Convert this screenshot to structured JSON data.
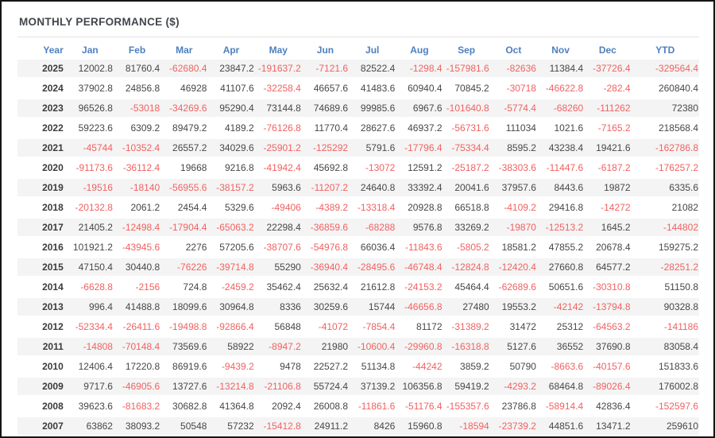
{
  "title": "MONTHLY PERFORMANCE ($)",
  "colors": {
    "header_blue": "#4d80bf",
    "negative_red": "#f26161",
    "positive_text": "#474747",
    "year_text": "#3b3b3b",
    "row_stripe": "#f4f4f4",
    "title_text": "#42464c",
    "divider": "#e3e3e3",
    "outer_border": "#141414"
  },
  "chart_data": {
    "type": "table",
    "title": "MONTHLY PERFORMANCE ($)",
    "columns": [
      "Year",
      "Jan",
      "Feb",
      "Mar",
      "Apr",
      "May",
      "Jun",
      "Jul",
      "Aug",
      "Sep",
      "Oct",
      "Nov",
      "Dec",
      "YTD"
    ],
    "rows": [
      {
        "year": "2025",
        "values": [
          12002.8,
          81760.4,
          -62680.4,
          23847.2,
          -191637.2,
          -7121.6,
          82522.4,
          -1298.4,
          -157981.6,
          -82636,
          11384.4,
          -37726.4,
          -329564.4
        ]
      },
      {
        "year": "2024",
        "values": [
          37902.8,
          24856.8,
          46928,
          41107.6,
          -32258.4,
          46657.6,
          41483.6,
          60940.4,
          70845.2,
          -30718,
          -46622.8,
          -282.4,
          260840.4
        ]
      },
      {
        "year": "2023",
        "values": [
          96526.8,
          -53018,
          -34269.6,
          95290.4,
          73144.8,
          74689.6,
          99985.6,
          6967.6,
          -101640.8,
          -5774.4,
          -68260,
          -111262,
          72380
        ]
      },
      {
        "year": "2022",
        "values": [
          59223.6,
          6309.2,
          89479.2,
          4189.2,
          -76126.8,
          11770.4,
          28627.6,
          46937.2,
          -56731.6,
          111034,
          1021.6,
          -7165.2,
          218568.4
        ]
      },
      {
        "year": "2021",
        "values": [
          -45744,
          -10352.4,
          26557.2,
          34029.6,
          -25901.2,
          -125292,
          5791.6,
          -17796.4,
          -75334.4,
          8595.2,
          43238.4,
          19421.6,
          -162786.8
        ]
      },
      {
        "year": "2020",
        "values": [
          -91173.6,
          -36112.4,
          19668,
          9216.8,
          -41942.4,
          45692.8,
          -13072,
          12591.2,
          -25187.2,
          -38303.6,
          -11447.6,
          -6187.2,
          -176257.2
        ]
      },
      {
        "year": "2019",
        "values": [
          -19516,
          -18140,
          -56955.6,
          -38157.2,
          5963.6,
          -11207.2,
          24640.8,
          33392.4,
          20041.6,
          37957.6,
          8443.6,
          19872,
          6335.6
        ]
      },
      {
        "year": "2018",
        "values": [
          -20132.8,
          2061.2,
          2454.4,
          5329.6,
          -49406,
          -4389.2,
          -13318.4,
          20928.8,
          66518.8,
          -4109.2,
          29416.8,
          -14272,
          21082
        ]
      },
      {
        "year": "2017",
        "values": [
          21405.2,
          -12498.4,
          -17904.4,
          -65063.2,
          22298.4,
          -36859.6,
          -68288,
          9576.8,
          33269.2,
          -19870,
          -12513.2,
          1645.2,
          -144802
        ]
      },
      {
        "year": "2016",
        "values": [
          101921.2,
          -43945.6,
          2276,
          57205.6,
          -38707.6,
          -54976.8,
          66036.4,
          -11843.6,
          -5805.2,
          18581.2,
          47855.2,
          20678.4,
          159275.2
        ]
      },
      {
        "year": "2015",
        "values": [
          47150.4,
          30440.8,
          -76226,
          -39714.8,
          55290,
          -36940.4,
          -28495.6,
          -46748.4,
          -12824.8,
          -12420.4,
          27660.8,
          64577.2,
          -28251.2
        ]
      },
      {
        "year": "2014",
        "values": [
          -6628.8,
          -2156,
          724.8,
          -2459.2,
          35462.4,
          25632.4,
          21612.8,
          -24153.2,
          45464.4,
          -62689.6,
          50651.6,
          -30310.8,
          51150.8
        ]
      },
      {
        "year": "2013",
        "values": [
          996.4,
          41488.8,
          18099.6,
          30964.8,
          8336,
          30259.6,
          15744,
          -46656.8,
          27480,
          19553.2,
          -42142,
          -13794.8,
          90328.8
        ]
      },
      {
        "year": "2012",
        "values": [
          -52334.4,
          -26411.6,
          -19498.8,
          -92866.4,
          56848,
          -41072,
          -7854.4,
          81172,
          -31389.2,
          31472,
          25312,
          -64563.2,
          -141186
        ]
      },
      {
        "year": "2011",
        "values": [
          -14808,
          -70148.4,
          73569.6,
          58922,
          -8947.2,
          21980,
          -10600.4,
          -29960.8,
          -16318.8,
          5127.6,
          36552,
          37690.8,
          83058.4
        ]
      },
      {
        "year": "2010",
        "values": [
          12406.4,
          17220.8,
          86919.6,
          -9439.2,
          9478,
          22527.2,
          51134.8,
          -44242,
          3859.2,
          50790,
          -8663.6,
          -40157.6,
          151833.6
        ]
      },
      {
        "year": "2009",
        "values": [
          9717.6,
          -46905.6,
          13727.6,
          -13214.8,
          -21106.8,
          55724.4,
          37139.2,
          106356.8,
          59419.2,
          -4293.2,
          68464.8,
          -89026.4,
          176002.8
        ]
      },
      {
        "year": "2008",
        "values": [
          39623.6,
          -81683.2,
          30682.8,
          41364.8,
          2092.4,
          26008.8,
          -11861.6,
          -51176.4,
          -155357.6,
          23786.8,
          -58914.4,
          42836.4,
          -152597.6
        ]
      },
      {
        "year": "2007",
        "values": [
          63862,
          38093.2,
          50548,
          57232,
          -15412.8,
          24911.2,
          8426,
          15960.8,
          -18594,
          -23739.2,
          44851.6,
          13471.2,
          259610
        ]
      }
    ]
  }
}
